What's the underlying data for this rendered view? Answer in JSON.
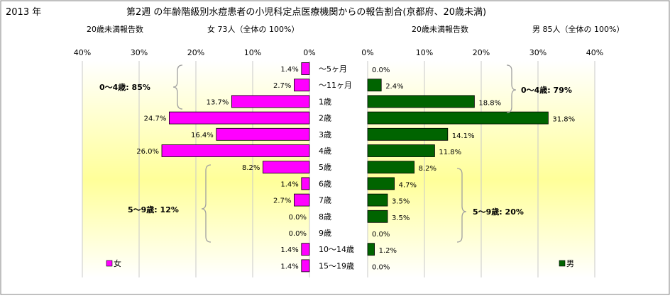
{
  "header": {
    "year": "2013 年",
    "title": "第2週 の年齢階級別水痘患者の小児科定点医療機関からの報告割合(京都府、20歳未満)"
  },
  "left_panel": {
    "count_label": "20歳未満報告数",
    "total_label": "女 73人（全体の 100%）",
    "legend": "女",
    "group_labels": [
      "0〜4歳: 85%",
      "5〜9歳: 12%"
    ]
  },
  "right_panel": {
    "count_label": "20歳未満報告数",
    "total_label": "男 85人（全体の 100%）",
    "legend": "男",
    "group_labels": [
      "0〜4歳: 79%",
      "5〜9歳: 20%"
    ]
  },
  "colors": {
    "female": "#ff00ff",
    "male": "#006400"
  },
  "chart_data": [
    {
      "type": "bar",
      "orientation": "horizontal",
      "direction": "right-to-left",
      "series": [
        {
          "name": "女",
          "values": [
            1.4,
            2.7,
            13.7,
            24.7,
            16.4,
            26.0,
            8.2,
            1.4,
            2.7,
            0.0,
            0.0,
            1.4,
            1.4
          ]
        }
      ],
      "data_labels": [
        "1.4%",
        "2.7%",
        "13.7%",
        "24.7%",
        "16.4%",
        "26.0%",
        "8.2%",
        "1.4%",
        "2.7%",
        "0.0%",
        "0.0%",
        "1.4%",
        "1.4%"
      ],
      "xlim": [
        0,
        40
      ],
      "x_ticks": [
        "40%",
        "30%",
        "20%",
        "10%",
        "0%"
      ],
      "grid": true,
      "legend": "bottom-left"
    },
    {
      "type": "bar",
      "orientation": "horizontal",
      "direction": "left-to-right",
      "series": [
        {
          "name": "男",
          "values": [
            0.0,
            2.4,
            18.8,
            31.8,
            14.1,
            11.8,
            8.2,
            4.7,
            3.5,
            3.5,
            0.0,
            1.2,
            0.0
          ]
        }
      ],
      "data_labels": [
        "0.0%",
        "2.4%",
        "18.8%",
        "31.8%",
        "14.1%",
        "11.8%",
        "8.2%",
        "4.7%",
        "3.5%",
        "3.5%",
        "0.0%",
        "1.2%",
        "0.0%"
      ],
      "xlim": [
        0,
        40
      ],
      "x_ticks": [
        "0%",
        "10%",
        "20%",
        "30%",
        "40%"
      ],
      "grid": true,
      "legend": "bottom-right"
    }
  ],
  "categories": [
    "〜5ヶ月",
    "〜11ヶ月",
    "1歳",
    "2歳",
    "3歳",
    "4歳",
    "5歳",
    "6歳",
    "7歳",
    "8歳",
    "9歳",
    "10〜14歳",
    "15〜19歳"
  ]
}
